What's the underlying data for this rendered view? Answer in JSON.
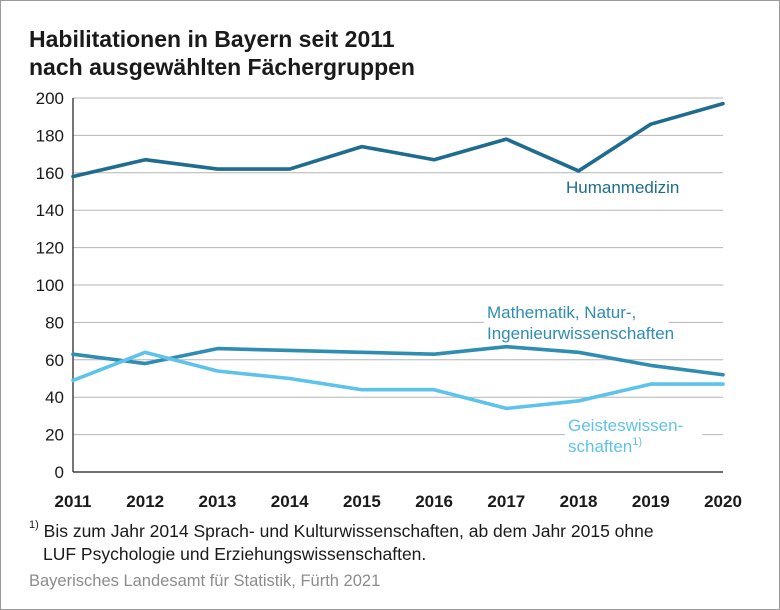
{
  "title_lines": [
    "Habilitationen in Bayern seit 2011",
    "nach ausgewählten Fächergruppen"
  ],
  "footnote": {
    "marker": "1)",
    "line1": "Bis zum Jahr 2014 Sprach- und Kulturwissenschaften, ab dem Jahr 2015 ohne",
    "line2": "LUF Psychologie und Erziehungswissenschaften."
  },
  "source": "Bayerisches Landesamt für Statistik, Fürth 2021",
  "chart_data": {
    "type": "line",
    "categories": [
      "2011",
      "2012",
      "2013",
      "2014",
      "2015",
      "2016",
      "2017",
      "2018",
      "2019",
      "2020"
    ],
    "ylim": [
      0,
      200
    ],
    "yticks": [
      0,
      20,
      40,
      60,
      80,
      100,
      120,
      140,
      160,
      180,
      200
    ],
    "grid": true,
    "series": [
      {
        "name": "Humanmedizin",
        "label_lines": [
          "Humanmedizin"
        ],
        "color": "#1f6d8e",
        "values": [
          158,
          167,
          162,
          162,
          174,
          167,
          178,
          161,
          186,
          197
        ]
      },
      {
        "name": "Mathematik, Natur-, Ingenieurwissenschaften",
        "label_lines": [
          "Mathematik, Natur-,",
          "Ingenieurwissenschaften"
        ],
        "color": "#2f8db2",
        "values": [
          63,
          58,
          66,
          65,
          64,
          63,
          67,
          64,
          57,
          52
        ]
      },
      {
        "name": "Geisteswissenschaften",
        "label_lines": [
          "Geisteswissen-",
          "schaften"
        ],
        "label_sup": "1)",
        "color": "#5ec3ea",
        "values": [
          49,
          64,
          54,
          50,
          44,
          44,
          34,
          38,
          47,
          47
        ]
      }
    ]
  }
}
